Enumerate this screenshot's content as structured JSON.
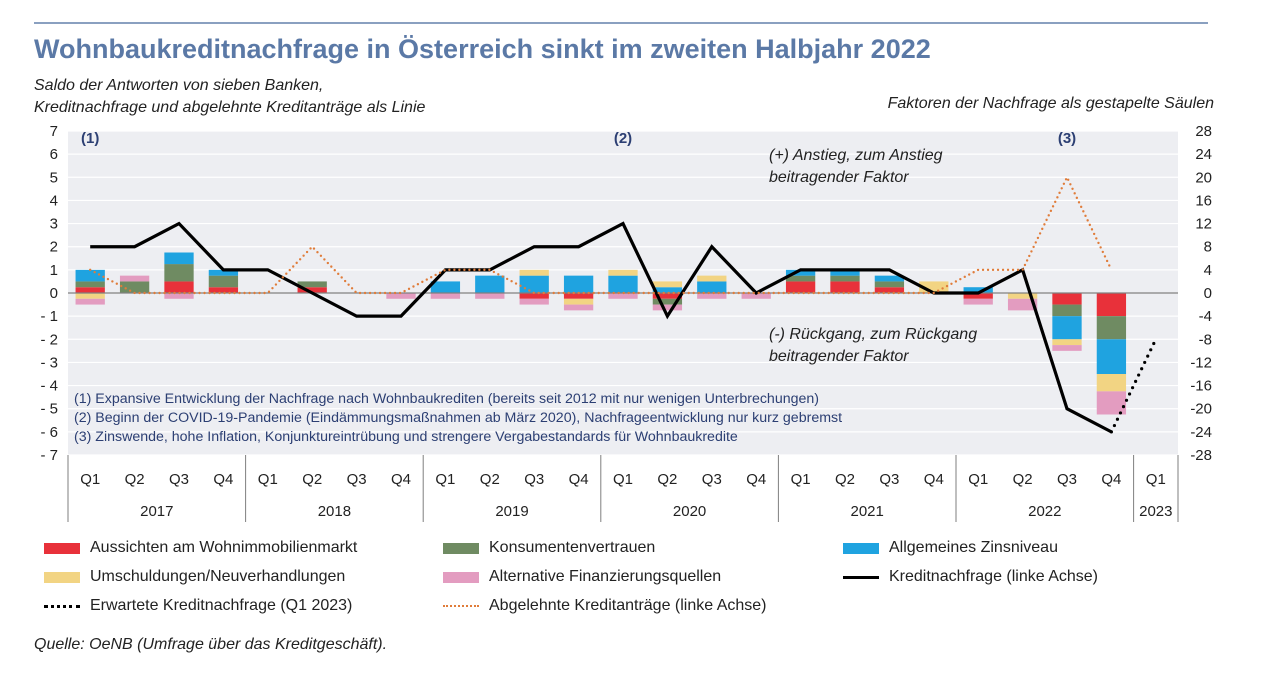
{
  "title": "Wohnbaukreditnachfrage in Österreich sinkt im zweiten Halbjahr 2022",
  "subtitle_left_1": "Saldo der Antworten von sieben Banken,",
  "subtitle_left_2": "Kreditnachfrage und abgelehnte Kreditanträge als Linie",
  "subtitle_right": "Faktoren der Nachfrage als gestapelte Säulen",
  "source": "Quelle: OeNB (Umfrage über das Kreditgeschäft).",
  "annotations": {
    "marker_1": "(1)",
    "marker_2": "(2)",
    "marker_3": "(3)",
    "increase_1": "(+) Anstieg, zum Anstieg",
    "increase_2": "beitragender Faktor",
    "decrease_1": "(-) Rückgang, zum Rückgang",
    "decrease_2": "beitragender Faktor",
    "notes": [
      "(1) Expansive Entwicklung der Nachfrage nach Wohnbaukrediten (bereits seit 2012 mit nur wenigen Unterbrechungen)",
      "(2) Beginn der COVID-19-Pandemie (Eindämmungsmaßnahmen ab März 2020), Nachfrageentwicklung nur kurz gebremst",
      "(3) Zinswende, hohe Inflation, Konjunktureintrübung und strengere Vergabestandards für Wohnbaukredite"
    ]
  },
  "colors": {
    "aussichten": "#e8313a",
    "konsumenten": "#6f8b62",
    "zinsniveau": "#1fa3e0",
    "umschuldungen": "#f2d483",
    "alternative": "#e39cc0",
    "kreditnachfrage": "#000000",
    "erwartete": "#000000",
    "abgelehnte": "#e07c3a",
    "title": "#5b79a6",
    "notes_text": "#2c3f73"
  },
  "legend": [
    {
      "key": "aussichten",
      "label": "Aussichten am Wohnimmobilienmarkt",
      "style": "bar"
    },
    {
      "key": "konsumenten",
      "label": "Konsumentenvertrauen",
      "style": "bar"
    },
    {
      "key": "zinsniveau",
      "label": "Allgemeines Zinsniveau",
      "style": "bar"
    },
    {
      "key": "umschuldungen",
      "label": "Umschuldungen/Neuverhandlungen",
      "style": "bar"
    },
    {
      "key": "alternative",
      "label": "Alternative Finanzierungsquellen",
      "style": "bar"
    },
    {
      "key": "kreditnachfrage",
      "label": "Kreditnachfrage (linke Achse)",
      "style": "solid"
    },
    {
      "key": "erwartete",
      "label": "Erwartete Kreditnachfrage (Q1 2023)",
      "style": "dotted"
    },
    {
      "key": "abgelehnte",
      "label": "Abgelehnte Kreditanträge (linke Achse)",
      "style": "dotted"
    }
  ],
  "chart_data": {
    "type": "bar",
    "stacked": true,
    "categories": [
      "Q1",
      "Q2",
      "Q3",
      "Q4",
      "Q1",
      "Q2",
      "Q3",
      "Q4",
      "Q1",
      "Q2",
      "Q3",
      "Q4",
      "Q1",
      "Q2",
      "Q3",
      "Q4",
      "Q1",
      "Q2",
      "Q3",
      "Q4",
      "Q1",
      "Q2",
      "Q3",
      "Q4",
      "Q1"
    ],
    "years": [
      {
        "label": "2017",
        "start": 0,
        "count": 4
      },
      {
        "label": "2018",
        "start": 4,
        "count": 4
      },
      {
        "label": "2019",
        "start": 8,
        "count": 4
      },
      {
        "label": "2020",
        "start": 12,
        "count": 4
      },
      {
        "label": "2021",
        "start": 16,
        "count": 4
      },
      {
        "label": "2022",
        "start": 20,
        "count": 4
      },
      {
        "label": "2023",
        "start": 24,
        "count": 1
      }
    ],
    "left_axis": {
      "min": -7,
      "max": 7,
      "step": 1,
      "ticks": [
        "7",
        "6",
        "5",
        "4",
        "3",
        "2",
        "1",
        "0",
        "- 1",
        "- 2",
        "- 3",
        "- 4",
        "- 5",
        "- 6",
        "- 7"
      ]
    },
    "right_axis": {
      "min": -28,
      "max": 28,
      "step": 4,
      "ticks": [
        "28",
        "24",
        "20",
        "16",
        "12",
        "8",
        "4",
        "0",
        "-4",
        "-8",
        "-12",
        "-16",
        "-20",
        "-24",
        "-28"
      ]
    },
    "bar_axis": "right",
    "series": [
      {
        "key": "aussichten",
        "name": "Aussichten am Wohnimmobilienmarkt",
        "values": [
          1,
          0,
          2,
          1,
          0,
          1,
          0,
          0,
          0,
          0,
          -1,
          -1,
          0,
          -1,
          0,
          0,
          2,
          2,
          1,
          0,
          -1,
          0,
          -2,
          -4,
          null
        ]
      },
      {
        "key": "konsumenten",
        "name": "Konsumentenvertrauen",
        "values": [
          1,
          2,
          3,
          2,
          0,
          1,
          0,
          0,
          0,
          0,
          0,
          0,
          0,
          -1,
          0,
          0,
          1,
          1,
          1,
          0,
          0,
          0,
          -2,
          -4,
          null
        ]
      },
      {
        "key": "zinsniveau",
        "name": "Allgemeines Zinsniveau",
        "values": [
          2,
          0,
          2,
          1,
          0,
          0,
          0,
          0,
          2,
          3,
          3,
          3,
          3,
          1,
          2,
          0,
          1,
          1,
          1,
          0,
          1,
          0,
          -4,
          -6,
          null
        ]
      },
      {
        "key": "umschuldungen",
        "name": "Umschuldungen/Neuverhandlungen",
        "values": [
          -1,
          0,
          0,
          0,
          0,
          0,
          0,
          0,
          0,
          0,
          1,
          -1,
          1,
          1,
          1,
          0,
          0,
          0,
          0,
          2,
          0,
          -1,
          -1,
          -3,
          null
        ]
      },
      {
        "key": "alternative",
        "name": "Alternative Finanzierungsquellen",
        "values": [
          -1,
          1,
          -1,
          0,
          0,
          0,
          0,
          -1,
          -1,
          -1,
          -1,
          -1,
          -1,
          -1,
          -1,
          -1,
          0,
          0,
          0,
          0,
          -1,
          -2,
          -1,
          -4,
          null
        ]
      }
    ],
    "lines": [
      {
        "key": "kreditnachfrage",
        "name": "Kreditnachfrage (linke Achse)",
        "axis": "left",
        "style": "solid",
        "values": [
          2,
          2,
          3,
          1,
          1,
          0,
          -1,
          -1,
          1,
          1,
          2,
          2,
          3,
          -1,
          2,
          0,
          1,
          1,
          1,
          0,
          0,
          1,
          -5,
          -6,
          null
        ]
      },
      {
        "key": "erwartete",
        "name": "Erwartete Kreditnachfrage (Q1 2023)",
        "axis": "left",
        "style": "dotted",
        "values": [
          null,
          null,
          null,
          null,
          null,
          null,
          null,
          null,
          null,
          null,
          null,
          null,
          null,
          null,
          null,
          null,
          null,
          null,
          null,
          null,
          null,
          null,
          null,
          -6,
          -2
        ]
      },
      {
        "key": "abgelehnte",
        "name": "Abgelehnte Kreditanträge (linke Achse)",
        "axis": "left",
        "style": "dotted",
        "values": [
          1,
          0,
          0,
          0,
          0,
          2,
          0,
          0,
          1,
          1,
          0,
          0,
          0,
          0,
          0,
          0,
          0,
          0,
          0,
          0,
          1,
          1,
          5,
          1,
          null
        ]
      }
    ]
  }
}
